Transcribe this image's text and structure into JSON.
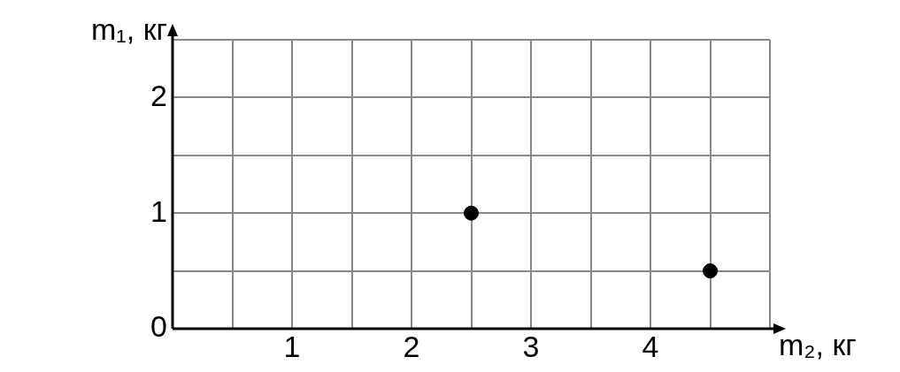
{
  "chart_data": {
    "type": "scatter",
    "xlabel": "m₂, кг",
    "ylabel": "m₁, кг",
    "series": [
      {
        "color": "#000000",
        "x": [
          2.5,
          4.5
        ],
        "values": [
          1,
          0.5
        ]
      }
    ],
    "xlim": [
      0,
      5
    ],
    "ylim": [
      0,
      2.5
    ],
    "xticks": [
      {
        "value": 0,
        "label": null
      },
      {
        "value": 0.5,
        "label": null
      },
      1,
      {
        "value": 1.5,
        "label": null
      },
      2,
      {
        "value": 2.5,
        "label": null
      },
      3,
      {
        "value": 3.5,
        "label": null
      },
      4,
      {
        "value": 4.5,
        "label": null
      },
      {
        "value": 5,
        "label": null
      }
    ],
    "yticks": [
      0,
      {
        "value": 0.5,
        "label": null
      },
      1,
      {
        "value": 1.5,
        "label": null
      },
      2,
      {
        "value": 2.5,
        "label": null
      }
    ],
    "grid": true,
    "legend": false,
    "marker": "circle"
  }
}
